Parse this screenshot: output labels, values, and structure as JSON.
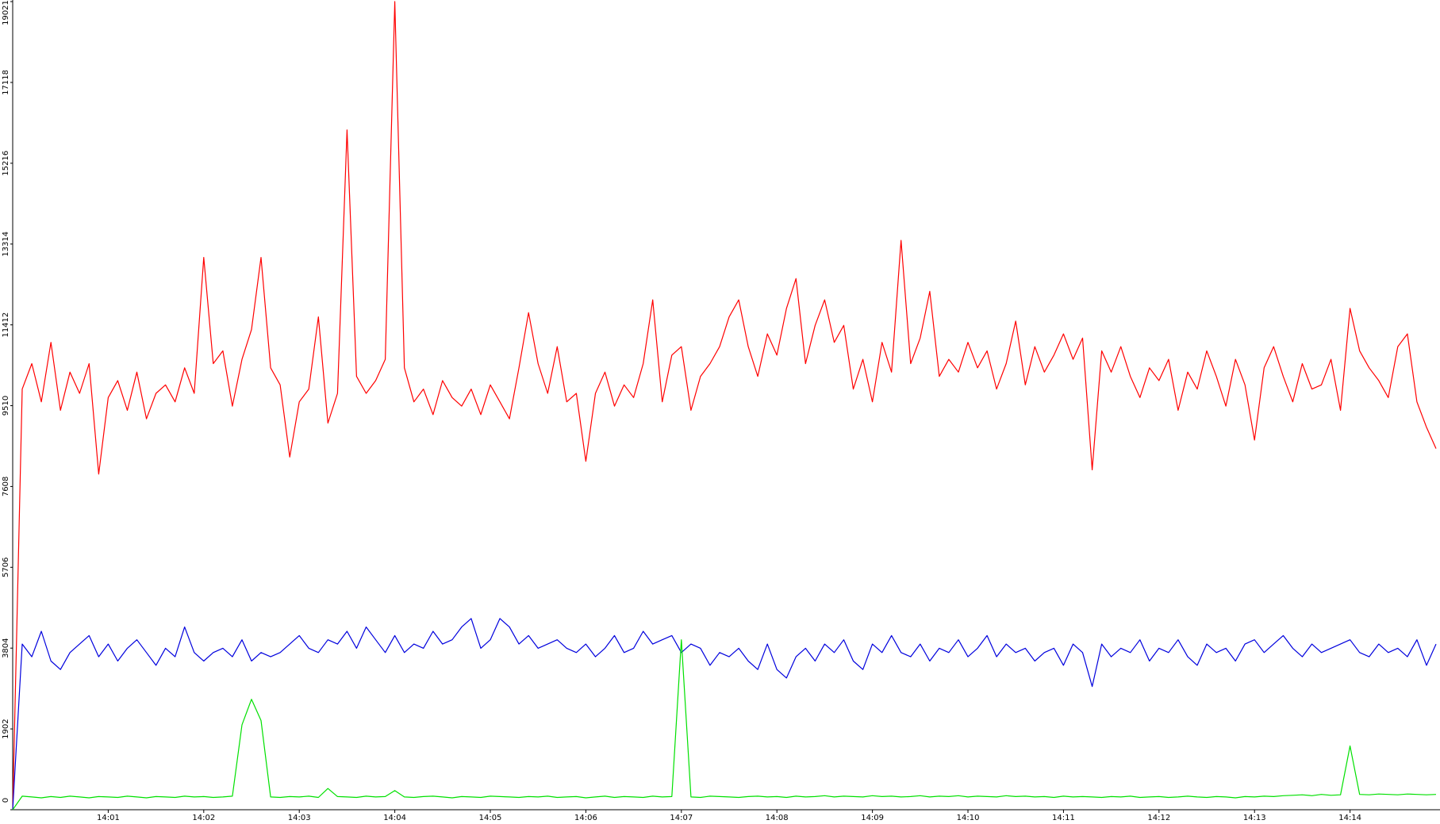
{
  "chart_data": {
    "type": "line",
    "categories": [
      null,
      null,
      null,
      null,
      null,
      null,
      null,
      null,
      null,
      null,
      "14:01",
      null,
      null,
      null,
      null,
      null,
      null,
      null,
      null,
      null,
      "14:02",
      null,
      null,
      null,
      null,
      null,
      null,
      null,
      null,
      null,
      "14:03",
      null,
      null,
      null,
      null,
      null,
      null,
      null,
      null,
      null,
      "14:04",
      null,
      null,
      null,
      null,
      null,
      null,
      null,
      null,
      null,
      "14:05",
      null,
      null,
      null,
      null,
      null,
      null,
      null,
      null,
      null,
      "14:06",
      null,
      null,
      null,
      null,
      null,
      null,
      null,
      null,
      null,
      "14:07",
      null,
      null,
      null,
      null,
      null,
      null,
      null,
      null,
      null,
      "14:08",
      null,
      null,
      null,
      null,
      null,
      null,
      null,
      null,
      null,
      "14:09",
      null,
      null,
      null,
      null,
      null,
      null,
      null,
      null,
      null,
      "14:10",
      null,
      null,
      null,
      null,
      null,
      null,
      null,
      null,
      null,
      "14:11",
      null,
      null,
      null,
      null,
      null,
      null,
      null,
      null,
      null,
      "14:12",
      null,
      null,
      null,
      null,
      null,
      null,
      null,
      null,
      null,
      "14:13",
      null,
      null,
      null,
      null,
      null,
      null,
      null,
      null,
      null,
      "14:14",
      null,
      null,
      null,
      null,
      null,
      null,
      null,
      null,
      null
    ],
    "series": [
      {
        "color": "#ff0000",
        "values": [
          0,
          9900,
          10500,
          9600,
          11000,
          9400,
          10300,
          9800,
          10500,
          7900,
          9700,
          10100,
          9400,
          10300,
          9200,
          9800,
          10000,
          9600,
          10400,
          9800,
          13000,
          10500,
          10800,
          9500,
          10600,
          11300,
          13000,
          10400,
          10000,
          8300,
          9600,
          9900,
          11600,
          9100,
          9800,
          16000,
          10200,
          9800,
          10100,
          10600,
          19021,
          10400,
          9600,
          9900,
          9300,
          10100,
          9700,
          9500,
          9900,
          9300,
          10000,
          9600,
          9200,
          10400,
          11700,
          10500,
          9800,
          10900,
          9600,
          9800,
          8200,
          9800,
          10300,
          9500,
          10000,
          9700,
          10500,
          12000,
          9600,
          10700,
          10900,
          9400,
          10200,
          10500,
          10900,
          11600,
          12000,
          10900,
          10200,
          11200,
          10700,
          11800,
          12500,
          10500,
          11400,
          12000,
          11000,
          11400,
          9900,
          10600,
          9600,
          11000,
          10300,
          13400,
          10500,
          11100,
          12200,
          10200,
          10600,
          10300,
          11000,
          10400,
          10800,
          9900,
          10500,
          11500,
          10000,
          10900,
          10300,
          10700,
          11200,
          10600,
          11100,
          8000,
          10800,
          10300,
          10900,
          10200,
          9700,
          10400,
          10100,
          10600,
          9400,
          10300,
          9900,
          10800,
          10200,
          9500,
          10600,
          10000,
          8700,
          10400,
          10900,
          10200,
          9600,
          10500,
          9900,
          10000,
          10600,
          9400,
          11800,
          10800,
          10400,
          10100,
          9700,
          10900,
          11200,
          9600,
          9000,
          8500
        ]
      },
      {
        "color": "#0000dd",
        "values": [
          0,
          3900,
          3600,
          4200,
          3500,
          3300,
          3700,
          3900,
          4100,
          3600,
          3900,
          3500,
          3800,
          4000,
          3700,
          3400,
          3800,
          3600,
          4300,
          3700,
          3500,
          3700,
          3800,
          3600,
          4000,
          3500,
          3700,
          3600,
          3700,
          3900,
          4100,
          3800,
          3700,
          4000,
          3900,
          4200,
          3800,
          4300,
          4000,
          3700,
          4100,
          3700,
          3900,
          3800,
          4200,
          3900,
          4000,
          4300,
          4500,
          3800,
          4000,
          4500,
          4300,
          3900,
          4100,
          3800,
          3900,
          4000,
          3800,
          3700,
          3900,
          3600,
          3800,
          4100,
          3700,
          3800,
          4200,
          3900,
          4000,
          4100,
          3700,
          3900,
          3800,
          3400,
          3700,
          3600,
          3800,
          3500,
          3300,
          3900,
          3300,
          3100,
          3600,
          3800,
          3500,
          3900,
          3700,
          4000,
          3500,
          3300,
          3900,
          3700,
          4100,
          3700,
          3600,
          3900,
          3500,
          3800,
          3700,
          4000,
          3600,
          3800,
          4100,
          3600,
          3900,
          3700,
          3800,
          3500,
          3700,
          3800,
          3400,
          3900,
          3700,
          2900,
          3900,
          3600,
          3800,
          3700,
          4000,
          3500,
          3800,
          3700,
          4000,
          3600,
          3400,
          3900,
          3700,
          3800,
          3500,
          3900,
          4000,
          3700,
          3900,
          4100,
          3800,
          3600,
          3900,
          3700,
          3800,
          3900,
          4000,
          3700,
          3600,
          3900,
          3700,
          3800,
          3600,
          4000,
          3400,
          3900
        ]
      },
      {
        "color": "#00e000",
        "values": [
          0,
          320,
          300,
          280,
          310,
          290,
          320,
          300,
          280,
          310,
          300,
          290,
          320,
          300,
          280,
          310,
          300,
          290,
          320,
          300,
          310,
          290,
          300,
          320,
          2000,
          2600,
          2100,
          300,
          290,
          310,
          300,
          320,
          290,
          500,
          310,
          300,
          290,
          320,
          300,
          310,
          450,
          300,
          290,
          310,
          320,
          300,
          280,
          310,
          300,
          290,
          320,
          310,
          300,
          290,
          310,
          300,
          320,
          290,
          300,
          310,
          280,
          300,
          320,
          290,
          310,
          300,
          290,
          320,
          300,
          310,
          4000,
          300,
          290,
          320,
          310,
          300,
          290,
          310,
          320,
          300,
          310,
          290,
          320,
          300,
          310,
          330,
          300,
          320,
          310,
          300,
          330,
          310,
          320,
          300,
          310,
          330,
          300,
          320,
          310,
          330,
          300,
          320,
          310,
          300,
          330,
          310,
          320,
          300,
          310,
          290,
          320,
          300,
          310,
          300,
          290,
          310,
          300,
          320,
          290,
          300,
          310,
          290,
          300,
          320,
          300,
          290,
          310,
          300,
          280,
          310,
          300,
          320,
          310,
          330,
          340,
          350,
          330,
          360,
          340,
          350,
          1500,
          360,
          350,
          370,
          360,
          350,
          370,
          360,
          350,
          360
        ]
      }
    ],
    "ylim": [
      0,
      19021
    ],
    "yticks": [
      0,
      1902,
      3804,
      5706,
      7608,
      9510,
      11412,
      13314,
      15216,
      17118,
      19021
    ]
  }
}
